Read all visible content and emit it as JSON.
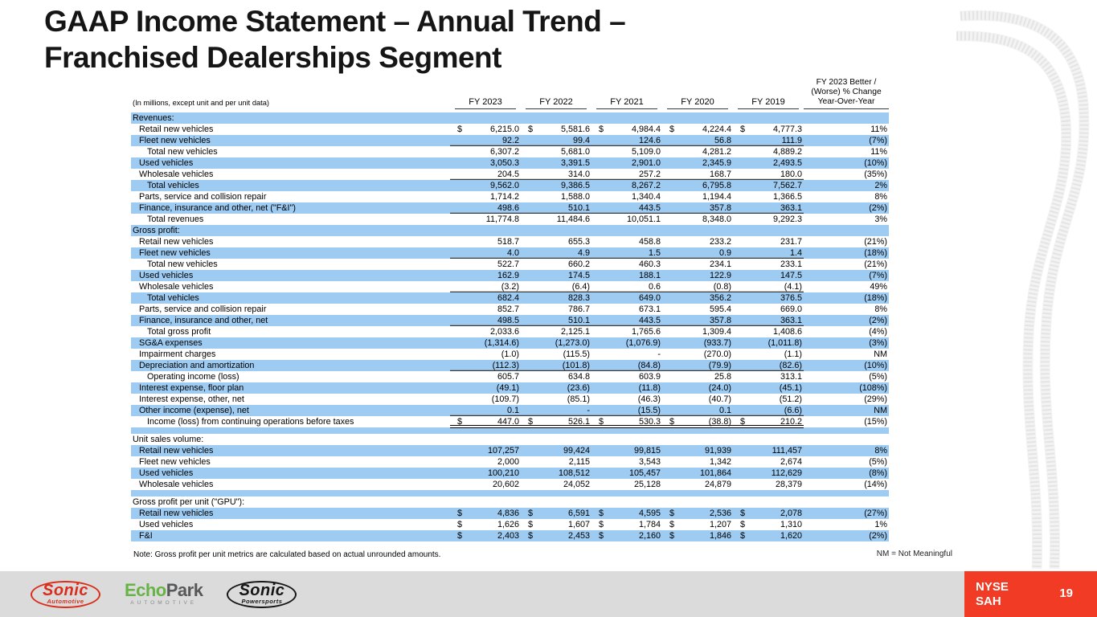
{
  "slide": {
    "title_line1": "GAAP Income Statement – Annual Trend –",
    "title_line2": "Franchised Dealerships Segment",
    "note_left": "Note: Gross profit per unit metrics are calculated based on actual unrounded amounts.",
    "note_right": "NM = Not Meaningful",
    "page_number": "19",
    "ticker_exchange": "NYSE",
    "ticker_symbol": "SAH"
  },
  "colors": {
    "row_blue": "#9ECBF2",
    "footer_gray": "#DBDBDB",
    "brand_red": "#F23B25",
    "echopark_green": "#67B346"
  },
  "logos": {
    "sonic_automotive": {
      "name": "Sonic",
      "sub": "Automotive"
    },
    "echopark": {
      "word_green": "Echo",
      "word_gray": "Park",
      "sub": "AUTOMOTIVE"
    },
    "sonic_powersports": {
      "name": "Sonic",
      "sub": "Powersports"
    }
  },
  "table": {
    "unit_note": "(In millions, except unit and per unit data)",
    "columns": [
      "FY 2023",
      "FY 2022",
      "FY 2021",
      "FY 2020",
      "FY 2019"
    ],
    "change_header_lines": [
      "FY 2023 Better /",
      "(Worse) % Change",
      "Year-Over-Year"
    ],
    "rows": [
      {
        "type": "section",
        "label": "Revenues:",
        "shade": "blue"
      },
      {
        "type": "data",
        "label": "Retail new vehicles",
        "indent": 1,
        "shade": "white",
        "dollar": true,
        "values": [
          "6,215.0",
          "5,581.6",
          "4,984.4",
          "4,224.4",
          "4,777.3"
        ],
        "pct": "11%"
      },
      {
        "type": "data",
        "label": "Fleet new vehicles",
        "indent": 1,
        "shade": "blue",
        "values": [
          "92.2",
          "99.4",
          "124.6",
          "56.8",
          "111.9"
        ],
        "pct": "(7%)",
        "underline": "single"
      },
      {
        "type": "data",
        "label": "Total new vehicles",
        "indent": 2,
        "shade": "white",
        "values": [
          "6,307.2",
          "5,681.0",
          "5,109.0",
          "4,281.2",
          "4,889.2"
        ],
        "pct": "11%"
      },
      {
        "type": "data",
        "label": "Used vehicles",
        "indent": 1,
        "shade": "blue",
        "values": [
          "3,050.3",
          "3,391.5",
          "2,901.0",
          "2,345.9",
          "2,493.5"
        ],
        "pct": "(10%)"
      },
      {
        "type": "data",
        "label": "Wholesale vehicles",
        "indent": 1,
        "shade": "white",
        "values": [
          "204.5",
          "314.0",
          "257.2",
          "168.7",
          "180.0"
        ],
        "pct": "(35%)",
        "underline": "single"
      },
      {
        "type": "data",
        "label": "Total vehicles",
        "indent": 2,
        "shade": "blue",
        "values": [
          "9,562.0",
          "9,386.5",
          "8,267.2",
          "6,795.8",
          "7,562.7"
        ],
        "pct": "2%"
      },
      {
        "type": "data",
        "label": "Parts, service and collision repair",
        "indent": 1,
        "shade": "white",
        "values": [
          "1,714.2",
          "1,588.0",
          "1,340.4",
          "1,194.4",
          "1,366.5"
        ],
        "pct": "8%"
      },
      {
        "type": "data",
        "label": "Finance, insurance and other, net (\"F&I\")",
        "indent": 1,
        "shade": "blue",
        "values": [
          "498.6",
          "510.1",
          "443.5",
          "357.8",
          "363.1"
        ],
        "pct": "(2%)",
        "underline": "single"
      },
      {
        "type": "data",
        "label": "Total revenues",
        "indent": 2,
        "shade": "white",
        "values": [
          "11,774.8",
          "11,484.6",
          "10,051.1",
          "8,348.0",
          "9,292.3"
        ],
        "pct": "3%"
      },
      {
        "type": "section",
        "label": "Gross profit:",
        "shade": "blue"
      },
      {
        "type": "data",
        "label": "Retail new vehicles",
        "indent": 1,
        "shade": "white",
        "values": [
          "518.7",
          "655.3",
          "458.8",
          "233.2",
          "231.7"
        ],
        "pct": "(21%)"
      },
      {
        "type": "data",
        "label": "Fleet new vehicles",
        "indent": 1,
        "shade": "blue",
        "values": [
          "4.0",
          "4.9",
          "1.5",
          "0.9",
          "1.4"
        ],
        "pct": "(18%)",
        "underline": "single"
      },
      {
        "type": "data",
        "label": "Total new vehicles",
        "indent": 2,
        "shade": "white",
        "values": [
          "522.7",
          "660.2",
          "460.3",
          "234.1",
          "233.1"
        ],
        "pct": "(21%)"
      },
      {
        "type": "data",
        "label": "Used vehicles",
        "indent": 1,
        "shade": "blue",
        "values": [
          "162.9",
          "174.5",
          "188.1",
          "122.9",
          "147.5"
        ],
        "pct": "(7%)"
      },
      {
        "type": "data",
        "label": "Wholesale vehicles",
        "indent": 1,
        "shade": "white",
        "values": [
          "(3.2)",
          "(6.4)",
          "0.6",
          "(0.8)",
          "(4.1)"
        ],
        "pct": "49%",
        "underline": "single"
      },
      {
        "type": "data",
        "label": "Total vehicles",
        "indent": 2,
        "shade": "blue",
        "values": [
          "682.4",
          "828.3",
          "649.0",
          "356.2",
          "376.5"
        ],
        "pct": "(18%)"
      },
      {
        "type": "data",
        "label": "Parts, service and collision repair",
        "indent": 1,
        "shade": "white",
        "values": [
          "852.7",
          "786.7",
          "673.1",
          "595.4",
          "669.0"
        ],
        "pct": "8%"
      },
      {
        "type": "data",
        "label": "Finance, insurance and other, net",
        "indent": 1,
        "shade": "blue",
        "values": [
          "498.5",
          "510.1",
          "443.5",
          "357.8",
          "363.1"
        ],
        "pct": "(2%)",
        "underline": "single"
      },
      {
        "type": "data",
        "label": "Total gross profit",
        "indent": 2,
        "shade": "white",
        "values": [
          "2,033.6",
          "2,125.1",
          "1,765.6",
          "1,309.4",
          "1,408.6"
        ],
        "pct": "(4%)"
      },
      {
        "type": "data",
        "label": "SG&A expenses",
        "indent": 1,
        "shade": "blue",
        "values": [
          "(1,314.6)",
          "(1,273.0)",
          "(1,076.9)",
          "(933.7)",
          "(1,011.8)"
        ],
        "pct": "(3%)"
      },
      {
        "type": "data",
        "label": "Impairment charges",
        "indent": 1,
        "shade": "white",
        "values": [
          "(1.0)",
          "(115.5)",
          "-",
          "(270.0)",
          "(1.1)"
        ],
        "pct": "NM"
      },
      {
        "type": "data",
        "label": "Depreciation and amortization",
        "indent": 1,
        "shade": "blue",
        "values": [
          "(112.3)",
          "(101.8)",
          "(84.8)",
          "(79.9)",
          "(82.6)"
        ],
        "pct": "(10%)",
        "underline": "single"
      },
      {
        "type": "data",
        "label": "Operating income (loss)",
        "indent": 2,
        "shade": "white",
        "values": [
          "605.7",
          "634.8",
          "603.9",
          "25.8",
          "313.1"
        ],
        "pct": "(5%)"
      },
      {
        "type": "data",
        "label": "Interest expense, floor plan",
        "indent": 1,
        "shade": "blue",
        "values": [
          "(49.1)",
          "(23.6)",
          "(11.8)",
          "(24.0)",
          "(45.1)"
        ],
        "pct": "(108%)"
      },
      {
        "type": "data",
        "label": "Interest expense, other, net",
        "indent": 1,
        "shade": "white",
        "values": [
          "(109.7)",
          "(85.1)",
          "(46.3)",
          "(40.7)",
          "(51.2)"
        ],
        "pct": "(29%)"
      },
      {
        "type": "data",
        "label": "Other income (expense), net",
        "indent": 1,
        "shade": "blue",
        "values": [
          "0.1",
          "-",
          "(15.5)",
          "0.1",
          "(6.6)"
        ],
        "pct": "NM",
        "underline": "single"
      },
      {
        "type": "data",
        "label": "Income (loss) from continuing operations before taxes",
        "indent": 2,
        "shade": "white",
        "dollar": true,
        "values": [
          "447.0",
          "526.1",
          "530.3",
          "(38.8)",
          "210.2"
        ],
        "pct": "(15%)",
        "underline": "double"
      },
      {
        "type": "spacer",
        "shade": "blue"
      },
      {
        "type": "section",
        "label": "Unit sales volume:",
        "shade": "white"
      },
      {
        "type": "data",
        "label": "Retail new vehicles",
        "indent": 1,
        "shade": "blue",
        "values": [
          "107,257",
          "99,424",
          "99,815",
          "91,939",
          "111,457"
        ],
        "pct": "8%"
      },
      {
        "type": "data",
        "label": "Fleet new vehicles",
        "indent": 1,
        "shade": "white",
        "values": [
          "2,000",
          "2,115",
          "3,543",
          "1,342",
          "2,674"
        ],
        "pct": "(5%)"
      },
      {
        "type": "data",
        "label": "Used vehicles",
        "indent": 1,
        "shade": "blue",
        "values": [
          "100,210",
          "108,512",
          "105,457",
          "101,864",
          "112,629"
        ],
        "pct": "(8%)"
      },
      {
        "type": "data",
        "label": "Wholesale vehicles",
        "indent": 1,
        "shade": "white",
        "values": [
          "20,602",
          "24,052",
          "25,128",
          "24,879",
          "28,379"
        ],
        "pct": "(14%)"
      },
      {
        "type": "spacer",
        "shade": "blue"
      },
      {
        "type": "section",
        "label": "Gross profit per unit (\"GPU\"):",
        "shade": "white"
      },
      {
        "type": "data",
        "label": "Retail new vehicles",
        "indent": 1,
        "shade": "blue",
        "dollar": true,
        "values": [
          "4,836",
          "6,591",
          "4,595",
          "2,536",
          "2,078"
        ],
        "pct": "(27%)"
      },
      {
        "type": "data",
        "label": "Used vehicles",
        "indent": 1,
        "shade": "white",
        "dollar": true,
        "values": [
          "1,626",
          "1,607",
          "1,784",
          "1,207",
          "1,310"
        ],
        "pct": "1%"
      },
      {
        "type": "data",
        "label": "F&I",
        "indent": 1,
        "shade": "blue",
        "dollar": true,
        "values": [
          "2,403",
          "2,453",
          "2,160",
          "1,846",
          "1,620"
        ],
        "pct": "(2%)"
      }
    ]
  }
}
